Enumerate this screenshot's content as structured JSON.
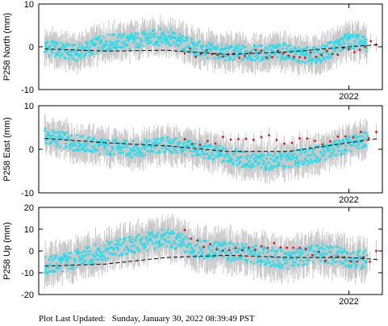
{
  "footer": {
    "label": "Plot Last Updated:",
    "timestamp": "Sunday, January 30, 2022 08:39:49 PST"
  },
  "colors": {
    "points": "#22ddee",
    "recent_points": "#dd1111",
    "error_bars": "#c8c8c8",
    "trend": "#000000"
  },
  "chart_data": [
    {
      "type": "scatter",
      "ylabel": "P258 North (mm)",
      "ylim": [
        -10,
        10
      ],
      "yticks": [
        -10,
        0,
        10
      ],
      "x_range": [
        2016.9,
        2022.55
      ],
      "xticks": [
        2022
      ],
      "xtick_labels": [
        "2022"
      ],
      "series": [
        {
          "x": [
            2017.0,
            2017.5,
            2018.0,
            2018.5,
            2019.0,
            2019.5,
            2020.0,
            2020.5,
            2021.0,
            2021.1,
            2021.5,
            2022.0,
            2022.3
          ],
          "y": [
            0,
            -1.5,
            1.0,
            1.5,
            2.5,
            -0.5,
            -1.5,
            -1.5,
            -1.0,
            -2.0,
            -2.0,
            1.5,
            0.5
          ],
          "error": 3.5
        },
        {
          "x": [
            2019.3,
            2019.35,
            2021.45,
            2021.5,
            2021.55,
            2021.6,
            2022.35,
            2022.45
          ],
          "y": [
            -1.0,
            -1.5,
            -1.5,
            -2.0,
            -2.5,
            -1.5,
            0.5,
            0.8
          ],
          "error": 2.0
        }
      ],
      "trend": {
        "x": [
          2017.0,
          2018.0,
          2019.0,
          2020.0,
          2021.0,
          2022.0,
          2022.5
        ],
        "y": [
          -0.5,
          -1.0,
          -0.8,
          -1.8,
          -1.2,
          0.0,
          0.5
        ]
      }
    },
    {
      "type": "scatter",
      "ylabel": "P258 East (mm)",
      "ylim": [
        -10,
        10
      ],
      "yticks": [
        -10,
        0,
        10
      ],
      "x_range": [
        2016.9,
        2022.55
      ],
      "xticks": [
        2022
      ],
      "xtick_labels": [
        "2022"
      ],
      "series": [
        {
          "x": [
            2017.0,
            2017.5,
            2018.0,
            2018.5,
            2019.0,
            2019.5,
            2020.0,
            2020.5,
            2021.0,
            2021.5,
            2022.0,
            2022.3
          ],
          "y": [
            3.0,
            1.5,
            0.5,
            0.0,
            1.0,
            0.0,
            -1.5,
            -3.0,
            -2.5,
            -1.0,
            1.0,
            2.5
          ],
          "error": 3.5
        },
        {
          "x": [
            2019.3,
            2019.35,
            2021.45,
            2021.55,
            2022.35,
            2022.45
          ],
          "y": [
            1.5,
            2.0,
            2.5,
            1.5,
            3.5,
            3.0
          ],
          "error": 2.0
        }
      ],
      "trend": {
        "x": [
          2017.0,
          2018.0,
          2019.0,
          2020.0,
          2021.0,
          2022.0,
          2022.5
        ],
        "y": [
          2.5,
          1.5,
          0.8,
          -0.5,
          -0.5,
          1.5,
          2.5
        ]
      }
    },
    {
      "type": "scatter",
      "ylabel": "P258 Up (mm)",
      "ylim": [
        -20,
        20
      ],
      "yticks": [
        -20,
        -10,
        0,
        10,
        20
      ],
      "x_range": [
        2016.9,
        2022.55
      ],
      "xticks": [
        2022
      ],
      "xtick_labels": [
        "2022"
      ],
      "series": [
        {
          "x": [
            2017.0,
            2017.5,
            2018.0,
            2018.5,
            2019.0,
            2019.5,
            2020.0,
            2020.5,
            2021.0,
            2021.5,
            2022.0,
            2022.3
          ],
          "y": [
            -7.0,
            -4.0,
            0.0,
            3.0,
            6.0,
            1.0,
            0.0,
            -2.0,
            -4.0,
            -1.0,
            -3.0,
            -4.0
          ],
          "error": 8.0
        },
        {
          "x": [
            2019.3,
            2019.35,
            2021.45,
            2021.5,
            2021.6,
            2022.35,
            2022.45
          ],
          "y": [
            7.0,
            4.0,
            0.0,
            2.0,
            -3.0,
            -5.0,
            -2.0
          ],
          "error": 5.0
        }
      ],
      "trend": {
        "x": [
          2017.0,
          2018.0,
          2019.0,
          2020.0,
          2021.0,
          2022.0,
          2022.5
        ],
        "y": [
          -7.0,
          -6.0,
          -3.0,
          -2.0,
          -3.0,
          -3.0,
          -4.0
        ]
      }
    }
  ]
}
